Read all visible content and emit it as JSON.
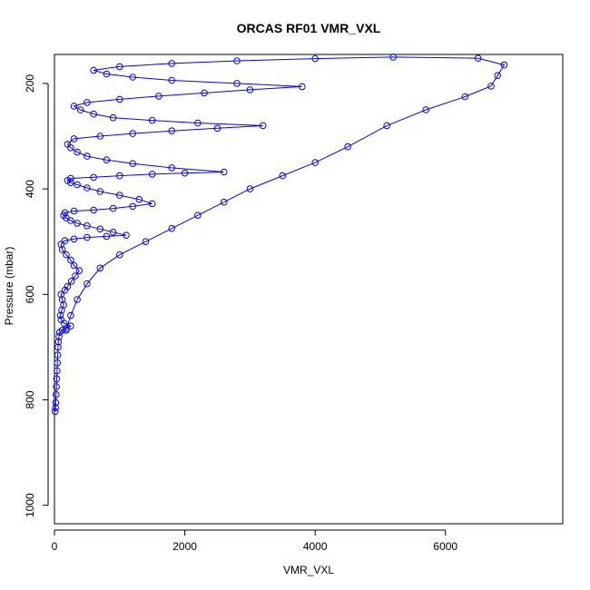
{
  "chart_data": {
    "type": "scatter",
    "title": "ORCAS RF01 VMR_VXL",
    "xlabel": "VMR_VXL",
    "ylabel": "Pressure (mbar)",
    "xlim": [
      0,
      7800
    ],
    "ylim": [
      1035,
      145
    ],
    "y_inverted": true,
    "x_ticks": [
      0,
      2000,
      4000,
      6000
    ],
    "y_ticks": [
      200,
      400,
      600,
      800,
      1000
    ],
    "grid": false,
    "legend": "none",
    "marker": "open-circle",
    "connect_points": true,
    "color": "#0000ff",
    "series": [
      {
        "points": [
          [
            10,
            822
          ],
          [
            15,
            815
          ],
          [
            20,
            805
          ],
          [
            25,
            790
          ],
          [
            30,
            775
          ],
          [
            35,
            760
          ],
          [
            40,
            745
          ],
          [
            45,
            730
          ],
          [
            50,
            715
          ],
          [
            55,
            700
          ],
          [
            60,
            690
          ],
          [
            70,
            680
          ],
          [
            80,
            672
          ],
          [
            120,
            668
          ],
          [
            180,
            665
          ],
          [
            250,
            660
          ],
          [
            150,
            655
          ],
          [
            100,
            648
          ],
          [
            90,
            640
          ],
          [
            110,
            630
          ],
          [
            140,
            620
          ],
          [
            120,
            610
          ],
          [
            100,
            600
          ],
          [
            160,
            592
          ],
          [
            200,
            585
          ],
          [
            260,
            575
          ],
          [
            320,
            565
          ],
          [
            380,
            555
          ],
          [
            300,
            545
          ],
          [
            250,
            535
          ],
          [
            180,
            525
          ],
          [
            120,
            515
          ],
          [
            100,
            505
          ],
          [
            160,
            498
          ],
          [
            300,
            495
          ],
          [
            500,
            492
          ],
          [
            800,
            490
          ],
          [
            1100,
            488
          ],
          [
            900,
            482
          ],
          [
            700,
            476
          ],
          [
            500,
            470
          ],
          [
            350,
            465
          ],
          [
            250,
            460
          ],
          [
            180,
            455
          ],
          [
            140,
            450
          ],
          [
            160,
            445
          ],
          [
            300,
            442
          ],
          [
            600,
            440
          ],
          [
            900,
            437
          ],
          [
            1200,
            433
          ],
          [
            1500,
            428
          ],
          [
            1300,
            420
          ],
          [
            1000,
            412
          ],
          [
            700,
            405
          ],
          [
            500,
            398
          ],
          [
            350,
            392
          ],
          [
            250,
            388
          ],
          [
            200,
            384
          ],
          [
            250,
            380
          ],
          [
            600,
            378
          ],
          [
            1000,
            375
          ],
          [
            1500,
            372
          ],
          [
            2000,
            370
          ],
          [
            2600,
            368
          ],
          [
            1800,
            360
          ],
          [
            1200,
            352
          ],
          [
            800,
            345
          ],
          [
            500,
            338
          ],
          [
            350,
            330
          ],
          [
            250,
            322
          ],
          [
            200,
            315
          ],
          [
            300,
            305
          ],
          [
            700,
            300
          ],
          [
            1200,
            295
          ],
          [
            1800,
            290
          ],
          [
            2500,
            285
          ],
          [
            3200,
            280
          ],
          [
            2200,
            275
          ],
          [
            1500,
            270
          ],
          [
            900,
            265
          ],
          [
            600,
            258
          ],
          [
            400,
            250
          ],
          [
            300,
            243
          ],
          [
            500,
            236
          ],
          [
            1000,
            230
          ],
          [
            1600,
            224
          ],
          [
            2300,
            218
          ],
          [
            3000,
            212
          ],
          [
            3800,
            206
          ],
          [
            2800,
            200
          ],
          [
            1800,
            194
          ],
          [
            1200,
            188
          ],
          [
            800,
            182
          ],
          [
            600,
            175
          ],
          [
            1000,
            168
          ],
          [
            1800,
            162
          ],
          [
            2800,
            157
          ],
          [
            4000,
            153
          ],
          [
            5200,
            150
          ],
          [
            6500,
            152
          ],
          [
            6900,
            165
          ],
          [
            6800,
            185
          ],
          [
            6700,
            205
          ],
          [
            6300,
            225
          ],
          [
            5700,
            250
          ],
          [
            5100,
            280
          ],
          [
            4500,
            320
          ],
          [
            4000,
            350
          ],
          [
            3500,
            375
          ],
          [
            3000,
            400
          ],
          [
            2600,
            425
          ],
          [
            2200,
            450
          ],
          [
            1800,
            475
          ],
          [
            1400,
            500
          ],
          [
            1000,
            525
          ],
          [
            700,
            550
          ],
          [
            500,
            580
          ],
          [
            350,
            610
          ],
          [
            250,
            640
          ],
          [
            180,
            668
          ]
        ]
      }
    ]
  }
}
